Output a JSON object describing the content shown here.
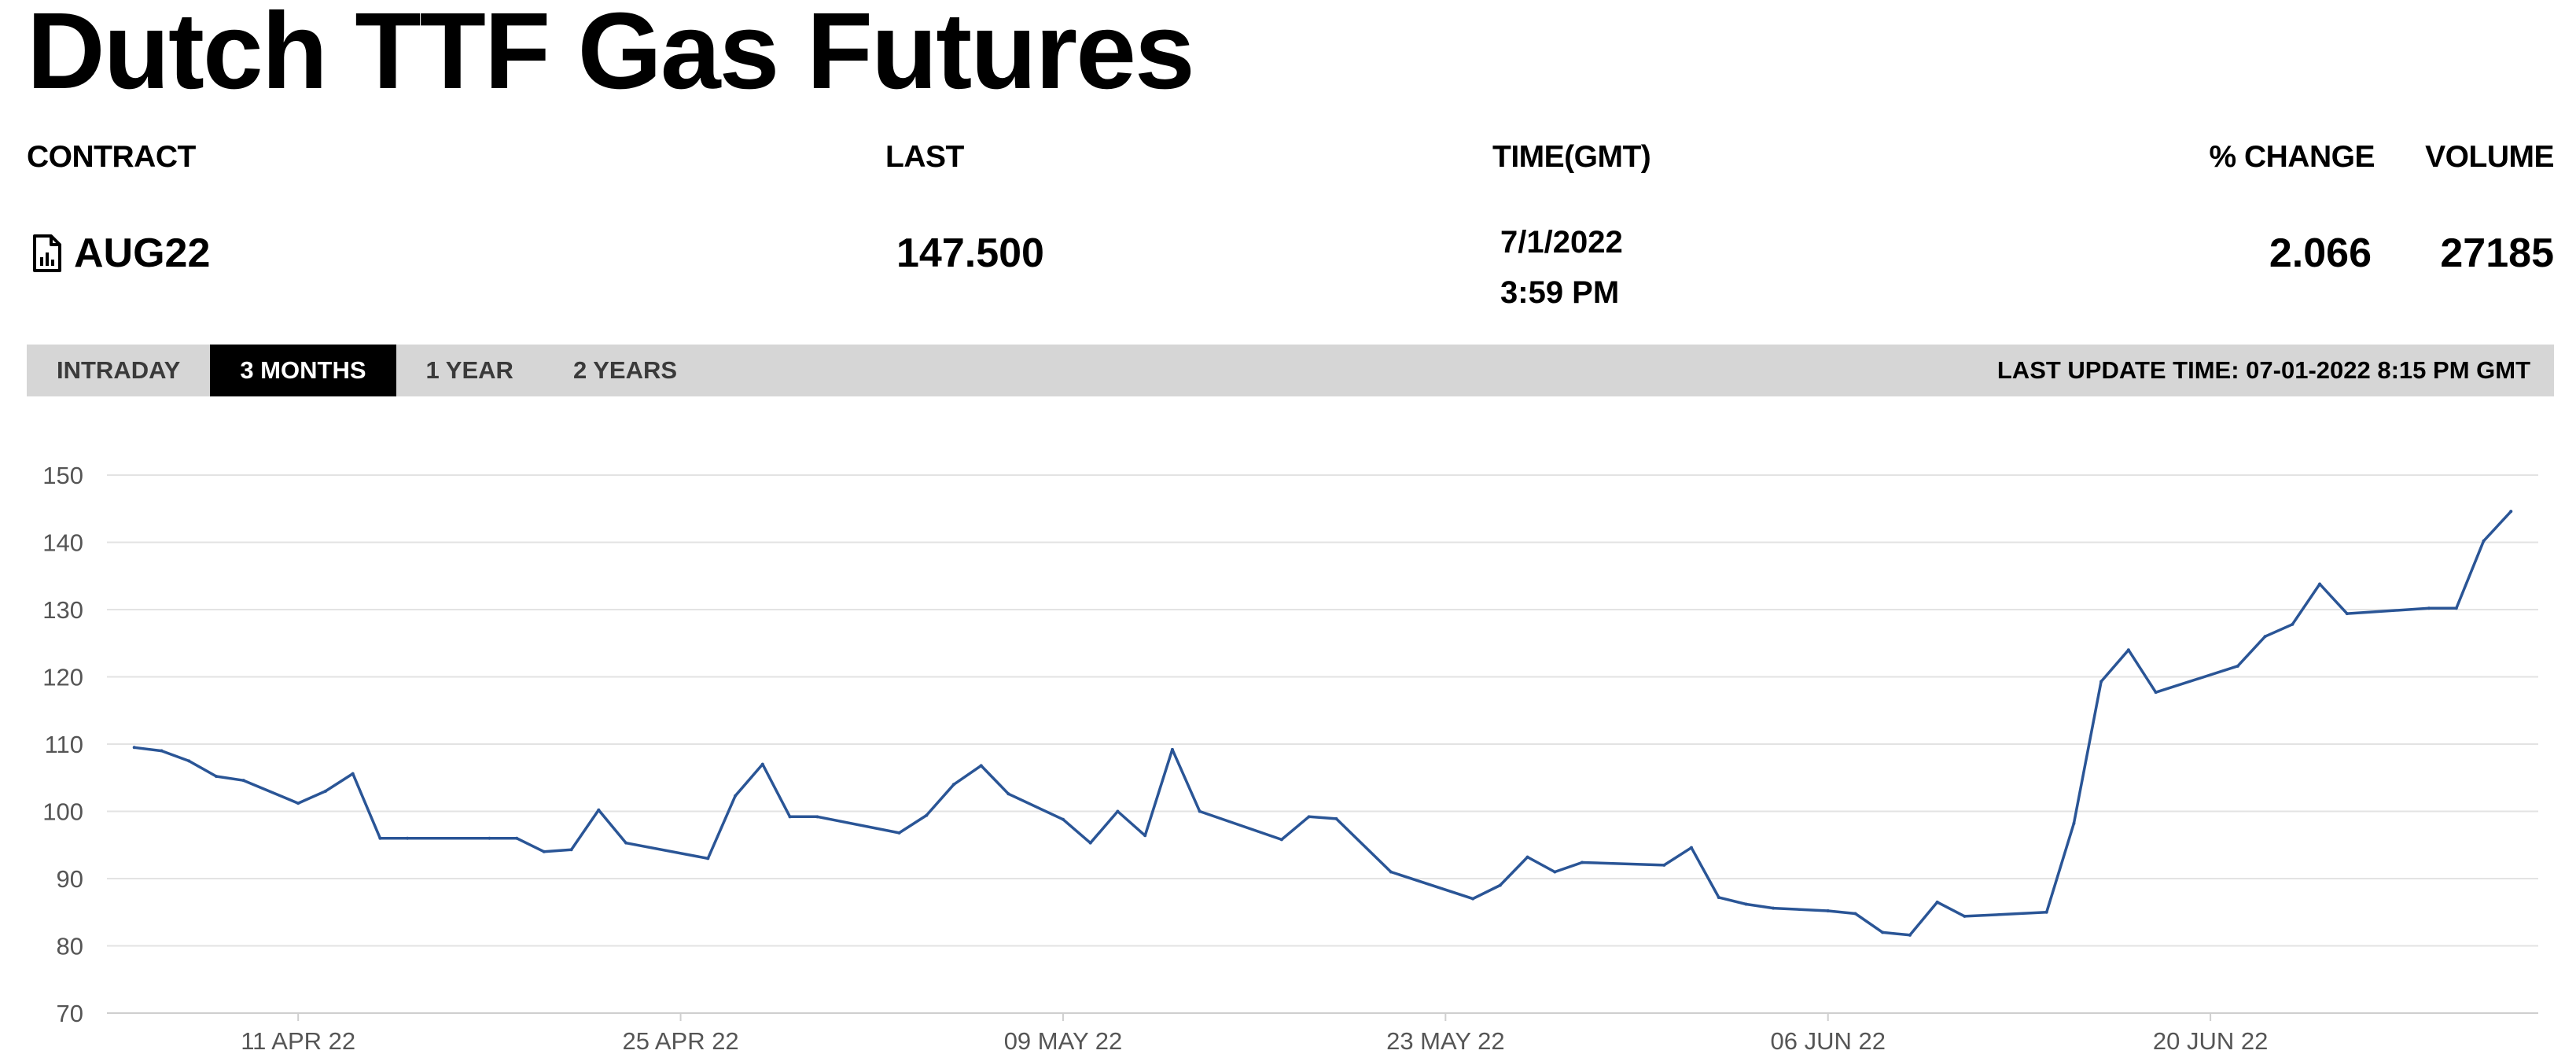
{
  "page": {
    "title": "Dutch TTF Gas Futures"
  },
  "table": {
    "headers": {
      "contract": "CONTRACT",
      "last": "LAST",
      "time": "TIME(GMT)",
      "change": "% CHANGE",
      "volume": "VOLUME"
    },
    "row": {
      "contract": "AUG22",
      "last": "147.500",
      "date": "7/1/2022",
      "time": "3:59 PM",
      "change": "2.066",
      "volume": "27185"
    }
  },
  "tabs": [
    {
      "label": "INTRADAY",
      "active": false
    },
    {
      "label": "3 MONTHS",
      "active": true
    },
    {
      "label": "1 YEAR",
      "active": false
    },
    {
      "label": "2 YEARS",
      "active": false
    }
  ],
  "last_update": "LAST UPDATE TIME: 07-01-2022 8:15 PM GMT",
  "colors": {
    "line": "#2a5596",
    "grid": "#e3e3e3",
    "tab_active_bg": "#000000",
    "tabbar_bg": "#d6d6d6"
  },
  "icons": {
    "contract_icon": "document-chart-icon"
  },
  "chart_data": {
    "type": "line",
    "title": "",
    "xlabel": "",
    "ylabel": "",
    "ylim": [
      70,
      150
    ],
    "yticks": [
      70,
      80,
      90,
      100,
      110,
      120,
      130,
      140,
      150
    ],
    "xlim": [
      "2022-04-04",
      "2022-07-02"
    ],
    "xtick_dates": [
      "2022-04-11",
      "2022-04-25",
      "2022-05-09",
      "2022-05-23",
      "2022-06-06",
      "2022-06-20"
    ],
    "xtick_labels": [
      "11 APR 22",
      "25 APR 22",
      "09 MAY 22",
      "23 MAY 22",
      "06 JUN 22",
      "20 JUN 22"
    ],
    "grid": true,
    "legend": "none",
    "series": [
      {
        "points": [
          [
            "2022-04-05",
            109.5
          ],
          [
            "2022-04-06",
            109.0
          ],
          [
            "2022-04-07",
            107.5
          ],
          [
            "2022-04-08",
            105.2
          ],
          [
            "2022-04-09",
            104.6
          ],
          [
            "2022-04-11",
            101.2
          ],
          [
            "2022-04-12",
            103.0
          ],
          [
            "2022-04-13",
            105.6
          ],
          [
            "2022-04-14",
            96.0
          ],
          [
            "2022-04-15",
            96.0
          ],
          [
            "2022-04-18",
            96.0
          ],
          [
            "2022-04-19",
            96.0
          ],
          [
            "2022-04-20",
            94.0
          ],
          [
            "2022-04-21",
            94.3
          ],
          [
            "2022-04-22",
            100.2
          ],
          [
            "2022-04-23",
            95.3
          ],
          [
            "2022-04-26",
            93.0
          ],
          [
            "2022-04-27",
            102.3
          ],
          [
            "2022-04-28",
            107.0
          ],
          [
            "2022-04-29",
            99.2
          ],
          [
            "2022-04-30",
            99.2
          ],
          [
            "2022-05-03",
            96.8
          ],
          [
            "2022-05-04",
            99.4
          ],
          [
            "2022-05-05",
            104.0
          ],
          [
            "2022-05-06",
            106.8
          ],
          [
            "2022-05-07",
            102.6
          ],
          [
            "2022-05-09",
            98.8
          ],
          [
            "2022-05-10",
            95.3
          ],
          [
            "2022-05-11",
            100.0
          ],
          [
            "2022-05-12",
            96.4
          ],
          [
            "2022-05-13",
            109.2
          ],
          [
            "2022-05-14",
            100.0
          ],
          [
            "2022-05-17",
            95.8
          ],
          [
            "2022-05-18",
            99.2
          ],
          [
            "2022-05-19",
            98.9
          ],
          [
            "2022-05-21",
            91.0
          ],
          [
            "2022-05-24",
            87.0
          ],
          [
            "2022-05-25",
            89.0
          ],
          [
            "2022-05-26",
            93.2
          ],
          [
            "2022-05-27",
            91.0
          ],
          [
            "2022-05-28",
            92.4
          ],
          [
            "2022-05-31",
            92.0
          ],
          [
            "2022-06-01",
            94.6
          ],
          [
            "2022-06-02",
            87.2
          ],
          [
            "2022-06-03",
            86.2
          ],
          [
            "2022-06-04",
            85.6
          ],
          [
            "2022-06-06",
            85.2
          ],
          [
            "2022-06-07",
            84.8
          ],
          [
            "2022-06-08",
            82.0
          ],
          [
            "2022-06-09",
            81.6
          ],
          [
            "2022-06-10",
            86.5
          ],
          [
            "2022-06-11",
            84.4
          ],
          [
            "2022-06-14",
            85.0
          ],
          [
            "2022-06-15",
            98.2
          ],
          [
            "2022-06-16",
            119.3
          ],
          [
            "2022-06-17",
            124.0
          ],
          [
            "2022-06-18",
            117.7
          ],
          [
            "2022-06-21",
            121.6
          ],
          [
            "2022-06-22",
            126.0
          ],
          [
            "2022-06-23",
            127.8
          ],
          [
            "2022-06-24",
            133.8
          ],
          [
            "2022-06-25",
            129.4
          ],
          [
            "2022-06-28",
            130.2
          ],
          [
            "2022-06-29",
            130.2
          ],
          [
            "2022-06-30",
            140.2
          ],
          [
            "2022-07-01",
            144.6
          ]
        ]
      }
    ]
  }
}
